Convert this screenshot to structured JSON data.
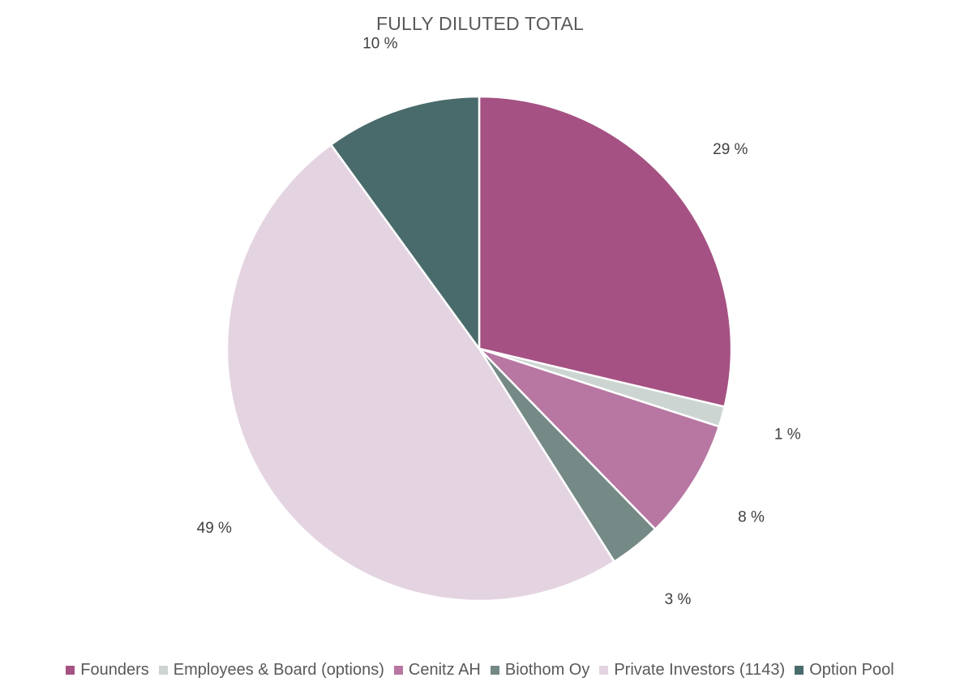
{
  "chart_data": {
    "type": "pie",
    "title": "FULLY DILUTED TOTAL",
    "start_angle_deg": 0,
    "direction": "clockwise",
    "legend_position": "bottom",
    "slices": [
      {
        "name": "Founders",
        "value": 28.7,
        "label": "29 %",
        "color": "#A55183"
      },
      {
        "name": "Employees & Board (options)",
        "value": 1.3,
        "label": "1 %",
        "color": "#CDD5D3"
      },
      {
        "name": "Cenitz AH",
        "value": 7.7,
        "label": "8 %",
        "color": "#B777A2"
      },
      {
        "name": "Biothom Oy",
        "value": 3.3,
        "label": "3 %",
        "color": "#758A86"
      },
      {
        "name": "Private Investors (1143)",
        "value": 49.0,
        "label": "49 %",
        "color": "#E4D4E1"
      },
      {
        "name": "Option Pool",
        "value": 10.0,
        "label": "10 %",
        "color": "#4A6B6B"
      }
    ]
  }
}
